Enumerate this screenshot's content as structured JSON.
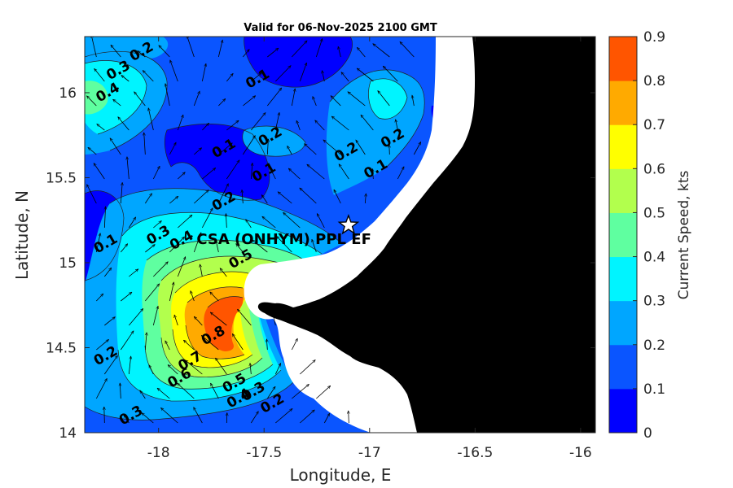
{
  "chart_data": {
    "type": "heatmap",
    "title": "Valid for 06-Nov-2025 2100 GMT",
    "xlabel": "Longitude, E",
    "ylabel": "Latitude, N",
    "xlim": [
      -18.35,
      -15.93
    ],
    "ylim": [
      14.0,
      16.33
    ],
    "xticks": [
      -18,
      -17.5,
      -17,
      -16.5,
      -16
    ],
    "xtick_labels": [
      "-18",
      "-17.5",
      "-17",
      "-16.5",
      "-16"
    ],
    "yticks": [
      14,
      14.5,
      15,
      15.5,
      16
    ],
    "ytick_labels": [
      "14",
      "14.5",
      "15",
      "15.5",
      "16"
    ],
    "colorbar": {
      "label": "Current Speed, kts",
      "ticks": [
        "0",
        "0.1",
        "0.2",
        "0.3",
        "0.4",
        "0.5",
        "0.6",
        "0.7",
        "0.8",
        "0.9"
      ],
      "levels": [
        0,
        0.1,
        0.2,
        0.3,
        0.4,
        0.5,
        0.6,
        0.7,
        0.8,
        0.9
      ],
      "colors": [
        "#0000ff",
        "#0a55ff",
        "#00a6ff",
        "#00f4ff",
        "#5fffa0",
        "#b2ff4d",
        "#ffff00",
        "#ffaa00",
        "#ff5500"
      ]
    },
    "land_color": "#000000",
    "nodata_color": "#ffffff",
    "contour_labels": [
      {
        "text": "0.2",
        "lon": -18.08,
        "lat": 16.24
      },
      {
        "text": "0.1",
        "lon": -17.53,
        "lat": 16.08
      },
      {
        "text": "0.3",
        "lon": -18.19,
        "lat": 16.13
      },
      {
        "text": "0.4",
        "lon": -18.24,
        "lat": 16.0
      },
      {
        "text": "0.2",
        "lon": -17.47,
        "lat": 15.74
      },
      {
        "text": "0.1",
        "lon": -17.69,
        "lat": 15.67
      },
      {
        "text": "0.1",
        "lon": -17.5,
        "lat": 15.53
      },
      {
        "text": "0.2",
        "lon": -17.69,
        "lat": 15.36
      },
      {
        "text": "0.2",
        "lon": -17.11,
        "lat": 15.65
      },
      {
        "text": "0.2",
        "lon": -16.89,
        "lat": 15.73
      },
      {
        "text": "0.1",
        "lon": -16.97,
        "lat": 15.55
      },
      {
        "text": "0.1",
        "lon": -18.25,
        "lat": 15.11
      },
      {
        "text": "0.3",
        "lon": -18.0,
        "lat": 15.16
      },
      {
        "text": "0.4",
        "lon": -17.89,
        "lat": 15.13
      },
      {
        "text": "0.5",
        "lon": -17.61,
        "lat": 15.02
      },
      {
        "text": "0.8",
        "lon": -17.74,
        "lat": 14.57
      },
      {
        "text": "0.7",
        "lon": -17.85,
        "lat": 14.42
      },
      {
        "text": "0.6",
        "lon": -17.9,
        "lat": 14.32
      },
      {
        "text": "0.5",
        "lon": -17.64,
        "lat": 14.29
      },
      {
        "text": "0.4",
        "lon": -17.62,
        "lat": 14.2
      },
      {
        "text": "0.3",
        "lon": -17.55,
        "lat": 14.24
      },
      {
        "text": "0.2",
        "lon": -17.46,
        "lat": 14.17
      },
      {
        "text": "0.2",
        "lon": -18.25,
        "lat": 14.45
      },
      {
        "text": "0.3",
        "lon": -18.13,
        "lat": 14.1
      }
    ],
    "site": {
      "label": "CSA (ONHYM) PPL EF",
      "lon": -17.1,
      "lat": 15.22
    }
  }
}
